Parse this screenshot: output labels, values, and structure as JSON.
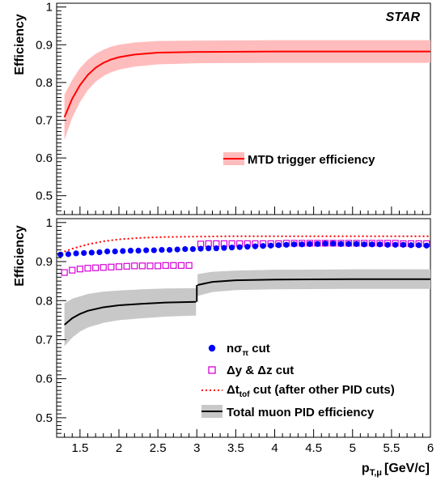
{
  "chart_data": [
    {
      "type": "line",
      "panel": "top",
      "ylabel": "Efficiency",
      "ylim": [
        0.45,
        1.01
      ],
      "xlim": [
        1.2,
        6.0
      ],
      "yticks": [
        0.5,
        0.6,
        0.7,
        0.8,
        0.9,
        1
      ],
      "grid": false,
      "corner_label": "STAR",
      "legend_position": "middle-right",
      "series": [
        {
          "name": "MTD trigger efficiency",
          "color": "#ff0000",
          "band_color": "#ffbcbc",
          "x": [
            1.3,
            1.4,
            1.5,
            1.6,
            1.7,
            1.8,
            1.9,
            2.0,
            2.2,
            2.5,
            3.0,
            4.0,
            5.0,
            6.0
          ],
          "y": [
            0.708,
            0.757,
            0.793,
            0.82,
            0.839,
            0.852,
            0.861,
            0.867,
            0.874,
            0.879,
            0.881,
            0.882,
            0.882,
            0.882
          ],
          "band_halfwidth": [
            0.06,
            0.05,
            0.045,
            0.04,
            0.037,
            0.035,
            0.034,
            0.033,
            0.032,
            0.031,
            0.03,
            0.03,
            0.03,
            0.03
          ]
        }
      ]
    },
    {
      "type": "scatter",
      "panel": "bottom",
      "ylabel": "Efficiency",
      "xlabel_parts": {
        "p": "p",
        "sub": "T,μ",
        "unit": "[GeV/c]"
      },
      "ylim": [
        0.45,
        1.01
      ],
      "xlim": [
        1.2,
        6.0
      ],
      "yticks": [
        0.5,
        0.6,
        0.7,
        0.8,
        0.9,
        1
      ],
      "xticks": [
        "1.5",
        "2",
        "2.5",
        "3",
        "3.5",
        "4",
        "4.5",
        "5",
        "5.5",
        "6"
      ],
      "grid": false,
      "legend_position": "bottom-right",
      "series": [
        {
          "name": "nσπ cut",
          "legend_parts": {
            "pre": "nσ",
            "sub": "π",
            "post": " cut"
          },
          "marker": "filled-circle",
          "color": "#0000ff",
          "x": [
            1.25,
            1.35,
            1.45,
            1.55,
            1.65,
            1.75,
            1.85,
            1.95,
            2.05,
            2.15,
            2.25,
            2.35,
            2.45,
            2.55,
            2.65,
            2.75,
            2.85,
            2.95,
            3.05,
            3.15,
            3.25,
            3.35,
            3.45,
            3.55,
            3.65,
            3.75,
            3.85,
            3.95,
            4.05,
            4.15,
            4.25,
            4.35,
            4.45,
            4.55,
            4.65,
            4.75,
            4.85,
            4.95,
            5.05,
            5.15,
            5.25,
            5.35,
            5.45,
            5.55,
            5.65,
            5.75,
            5.85,
            5.95
          ],
          "y": [
            0.918,
            0.919,
            0.921,
            0.922,
            0.923,
            0.924,
            0.926,
            0.926,
            0.927,
            0.928,
            0.928,
            0.929,
            0.929,
            0.93,
            0.93,
            0.931,
            0.932,
            0.932,
            0.933,
            0.934,
            0.934,
            0.935,
            0.936,
            0.937,
            0.938,
            0.939,
            0.94,
            0.941,
            0.942,
            0.943,
            0.944,
            0.944,
            0.945,
            0.945,
            0.946,
            0.946,
            0.945,
            0.945,
            0.945,
            0.944,
            0.944,
            0.944,
            0.943,
            0.943,
            0.943,
            0.942,
            0.942,
            0.941
          ]
        },
        {
          "name": "Δy & Δz cut",
          "legend_parts": {
            "pre": "Δy &  Δz cut",
            "sub": "",
            "post": ""
          },
          "marker": "open-square",
          "color": "#d700d7",
          "x": [
            1.3,
            1.4,
            1.5,
            1.6,
            1.7,
            1.8,
            1.9,
            2.0,
            2.1,
            2.2,
            2.3,
            2.4,
            2.5,
            2.6,
            2.7,
            2.8,
            2.9,
            3.05,
            3.15,
            3.25,
            3.35,
            3.45,
            3.55,
            3.65,
            3.75,
            3.85,
            3.95,
            4.05,
            4.15,
            4.25,
            4.35,
            4.45,
            4.55,
            4.65,
            4.75,
            4.85,
            4.95,
            5.05,
            5.15,
            5.25,
            5.35,
            5.45,
            5.55,
            5.65,
            5.75,
            5.85,
            5.95
          ],
          "y": [
            0.872,
            0.878,
            0.881,
            0.883,
            0.884,
            0.885,
            0.886,
            0.887,
            0.888,
            0.889,
            0.889,
            0.889,
            0.889,
            0.89,
            0.89,
            0.89,
            0.89,
            0.945,
            0.946,
            0.946,
            0.946,
            0.946,
            0.946,
            0.946,
            0.946,
            0.946,
            0.946,
            0.946,
            0.947,
            0.947,
            0.947,
            0.947,
            0.947,
            0.947,
            0.947,
            0.947,
            0.947,
            0.947,
            0.947,
            0.947,
            0.947,
            0.947,
            0.947,
            0.946,
            0.946,
            0.946,
            0.946
          ]
        },
        {
          "name": "Δttof cut (after other PID cuts)",
          "legend_parts": {
            "pre": "Δt",
            "sub": "tof",
            "post": " cut (after other PID cuts)"
          },
          "line_style": "dotted",
          "color": "#ff0000",
          "x": [
            1.25,
            1.4,
            1.6,
            1.8,
            2.0,
            2.3,
            2.6,
            3.0,
            3.5,
            4.0,
            4.5,
            5.0,
            5.5,
            6.0
          ],
          "y": [
            0.922,
            0.933,
            0.944,
            0.952,
            0.957,
            0.961,
            0.963,
            0.964,
            0.965,
            0.965,
            0.965,
            0.965,
            0.965,
            0.965
          ]
        },
        {
          "name": "Total muon PID efficiency",
          "legend_parts": {
            "pre": "Total muon PID efficiency",
            "sub": "",
            "post": ""
          },
          "color": "#000000",
          "band_color": "#c8c8c8",
          "x": [
            1.3,
            1.4,
            1.5,
            1.6,
            1.8,
            2.0,
            2.3,
            2.6,
            2.99,
            3.01,
            3.2,
            3.5,
            4.0,
            5.0,
            6.0
          ],
          "y": [
            0.738,
            0.755,
            0.766,
            0.774,
            0.783,
            0.788,
            0.792,
            0.795,
            0.797,
            0.84,
            0.848,
            0.852,
            0.854,
            0.855,
            0.855
          ],
          "band_halfwidth": [
            0.055,
            0.05,
            0.045,
            0.043,
            0.04,
            0.038,
            0.037,
            0.036,
            0.035,
            0.028,
            0.026,
            0.025,
            0.025,
            0.025,
            0.025
          ]
        }
      ]
    }
  ]
}
